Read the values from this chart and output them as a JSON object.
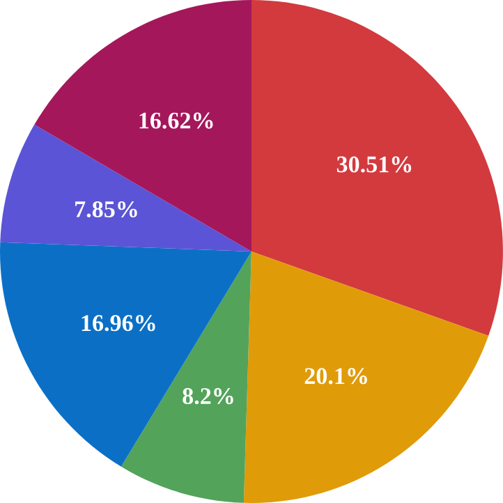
{
  "chart_data": {
    "type": "pie",
    "categories": [
      null,
      null,
      null,
      null,
      null,
      null
    ],
    "values": [
      30.51,
      20.1,
      8.2,
      16.96,
      7.85,
      16.62
    ],
    "value_labels": [
      "30.51%",
      "20.1%",
      "8.2%",
      "16.96%",
      "7.85%",
      "16.62%"
    ],
    "colors": [
      "#d23a3e",
      "#e09b09",
      "#53a35b",
      "#0b70c5",
      "#5c54d6",
      "#a4175b"
    ]
  }
}
